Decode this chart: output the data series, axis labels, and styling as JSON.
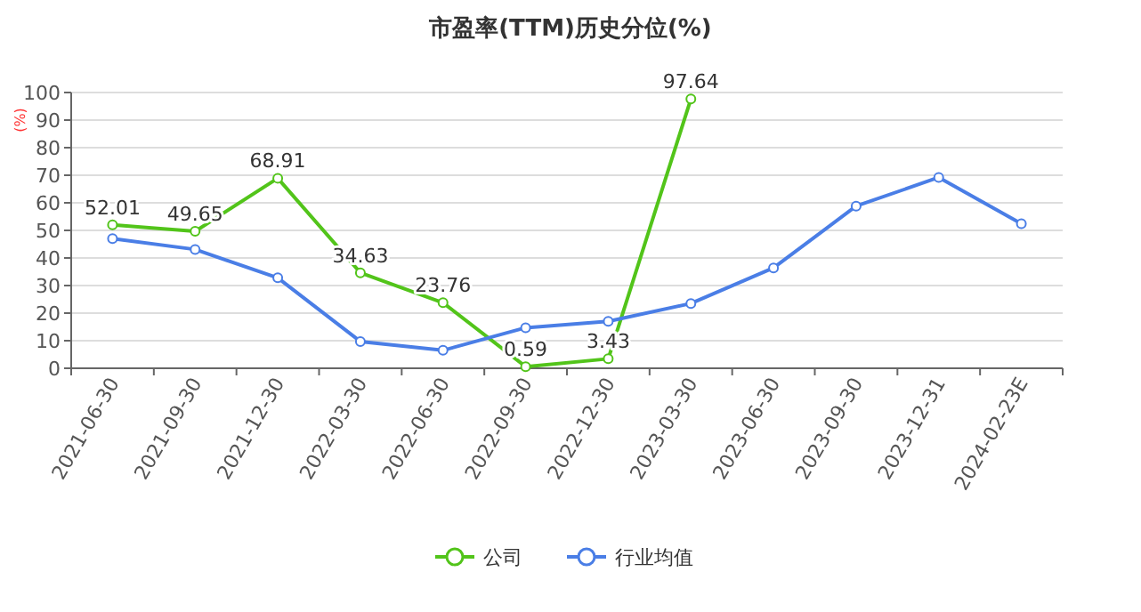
{
  "chart_data": {
    "type": "line",
    "title": "市盈率(TTM)历史分位(%)",
    "ylabel": "(%)",
    "categories": [
      "2021-06-30",
      "2021-09-30",
      "2021-12-30",
      "2022-03-30",
      "2022-06-30",
      "2022-09-30",
      "2022-12-30",
      "2023-03-30",
      "2023-06-30",
      "2023-09-30",
      "2023-12-31",
      "2024-02-23E"
    ],
    "series": [
      {
        "name": "公司",
        "color": "#52c41a",
        "values": [
          52.01,
          49.65,
          68.91,
          34.63,
          23.76,
          0.59,
          3.43,
          97.64,
          null,
          null,
          null,
          null
        ],
        "value_labels": [
          "52.01",
          "49.65",
          "68.91",
          "34.63",
          "23.76",
          "0.59",
          "3.43",
          "97.64",
          null,
          null,
          null,
          null
        ]
      },
      {
        "name": "行业均值",
        "color": "#4a7ee6",
        "values": [
          47.0,
          43.1,
          32.8,
          9.7,
          6.5,
          14.7,
          17.0,
          23.5,
          36.4,
          58.8,
          69.2,
          52.4
        ]
      }
    ],
    "ylim": [
      0,
      100
    ],
    "yticks": [
      0,
      10,
      20,
      30,
      40,
      50,
      60,
      70,
      80,
      90,
      100
    ],
    "grid": "y",
    "legend": "bottom",
    "marker": "circle"
  }
}
